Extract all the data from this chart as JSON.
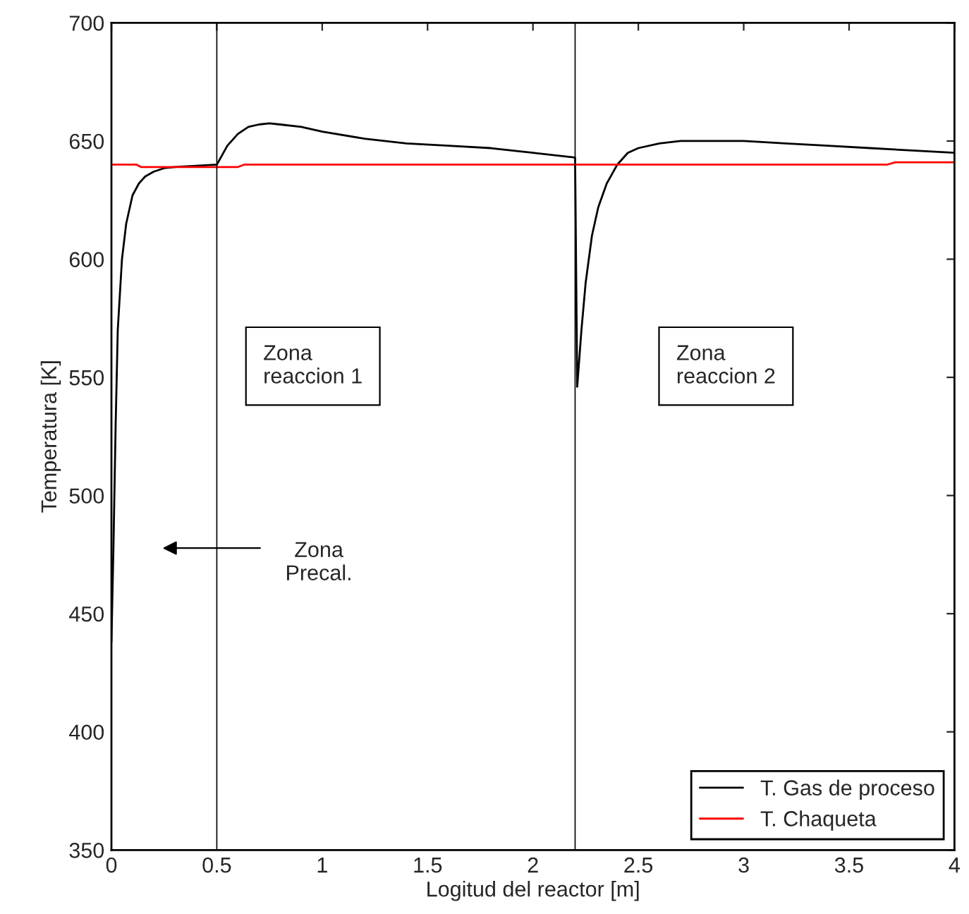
{
  "chart_data": {
    "type": "line",
    "xlabel": "Logitud del reactor [m]",
    "ylabel": "Temperatura [K]",
    "xlim": [
      0,
      4
    ],
    "xticks": [
      0,
      0.5,
      1,
      1.5,
      2,
      2.5,
      3,
      3.5,
      4
    ],
    "ylim": [
      350,
      700
    ],
    "yticks": [
      350,
      400,
      450,
      500,
      550,
      600,
      650,
      700
    ],
    "grid": false,
    "legend": "bottom right",
    "series": [
      {
        "name": "T. Gas de proceso",
        "color": "#000000",
        "x": [
          0,
          0.01,
          0.02,
          0.03,
          0.05,
          0.07,
          0.1,
          0.13,
          0.16,
          0.2,
          0.25,
          0.3,
          0.4,
          0.5,
          0.55,
          0.6,
          0.65,
          0.7,
          0.75,
          0.8,
          0.9,
          1.0,
          1.2,
          1.4,
          1.6,
          1.8,
          2.0,
          2.2,
          2.2,
          2.21,
          2.23,
          2.25,
          2.28,
          2.31,
          2.35,
          2.4,
          2.45,
          2.5,
          2.6,
          2.7,
          2.8,
          3.0,
          3.2,
          3.4,
          3.6,
          3.8,
          4.0
        ],
        "values": [
          438,
          480,
          530,
          570,
          600,
          615,
          627,
          632,
          635,
          637,
          638.5,
          639,
          639.5,
          640,
          648,
          653,
          656,
          657,
          657.5,
          657,
          656,
          654,
          651,
          649,
          648,
          647,
          645,
          643,
          643,
          546,
          570,
          590,
          610,
          622,
          632,
          640,
          645,
          647,
          649,
          650,
          650,
          650,
          649,
          648,
          647,
          646,
          645
        ]
      },
      {
        "name": "T. Chaqueta",
        "color": "#ff0000",
        "x": [
          0,
          0.12,
          0.14,
          0.6,
          0.63,
          3.68,
          3.72,
          4.0
        ],
        "values": [
          640,
          640,
          639,
          639,
          640,
          640,
          641,
          641
        ]
      }
    ],
    "ref_lines": [
      {
        "axis": "x",
        "value": 0.5,
        "color": "#000000"
      },
      {
        "axis": "x",
        "value": 2.2,
        "color": "#000000"
      }
    ],
    "annotations": [
      "Zona\nreaccion 1",
      "Zona\nreaccion 2",
      "Zona\nPrecal."
    ]
  }
}
